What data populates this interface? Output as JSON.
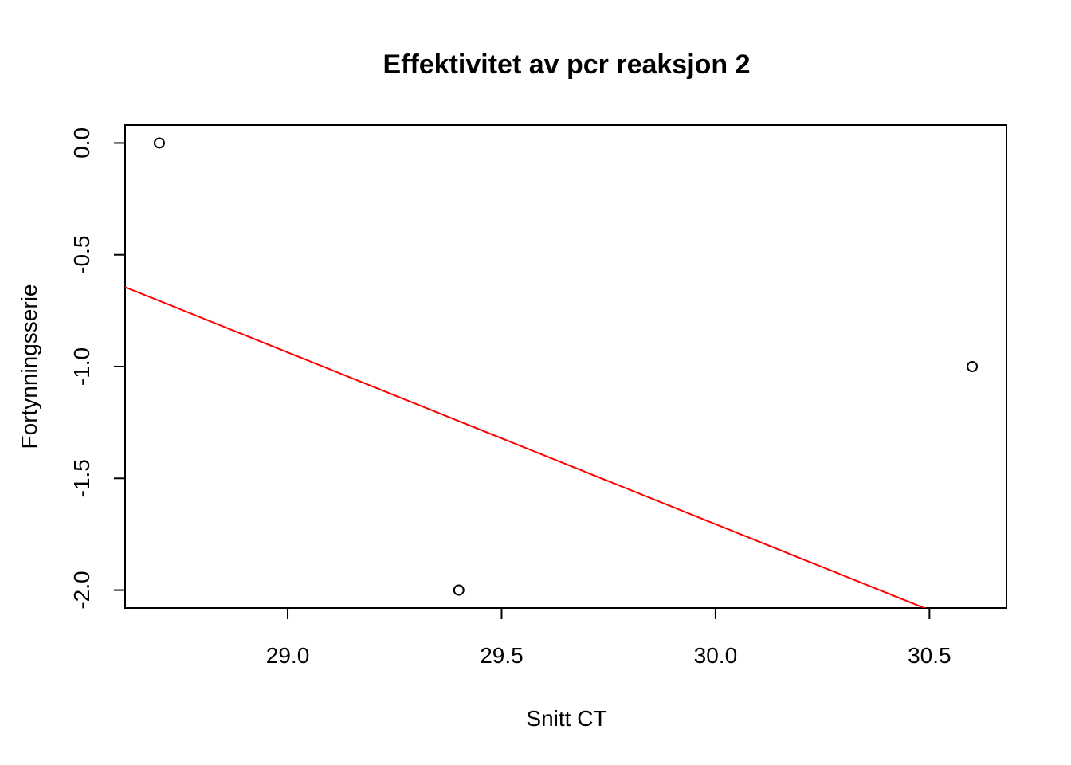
{
  "chart_data": {
    "type": "scatter",
    "title": "Effektivitet av pcr reaksjon 2",
    "xlabel": "Snitt CT",
    "ylabel": "Fortynningsserie",
    "xlim": [
      28.62,
      30.68
    ],
    "ylim": [
      -2.08,
      0.08
    ],
    "x_ticks": [
      29.0,
      29.5,
      30.0,
      30.5
    ],
    "x_tick_labels": [
      "29.0",
      "29.5",
      "30.0",
      "30.5"
    ],
    "y_ticks": [
      0.0,
      -0.5,
      -1.0,
      -1.5,
      -2.0
    ],
    "y_tick_labels": [
      "0.0",
      "-0.5",
      "-1.0",
      "-1.5",
      "-2.0"
    ],
    "grid": false,
    "legend": "none",
    "series": [
      {
        "type": "scatter",
        "marker": "open-circle",
        "color": "#000000",
        "x": [
          28.7,
          29.4,
          30.6
        ],
        "y": [
          0.0,
          -2.0,
          -1.0
        ]
      }
    ],
    "regression_line": {
      "color": "#ff0000",
      "intercept": 21.35,
      "slope": -0.7685
    }
  }
}
